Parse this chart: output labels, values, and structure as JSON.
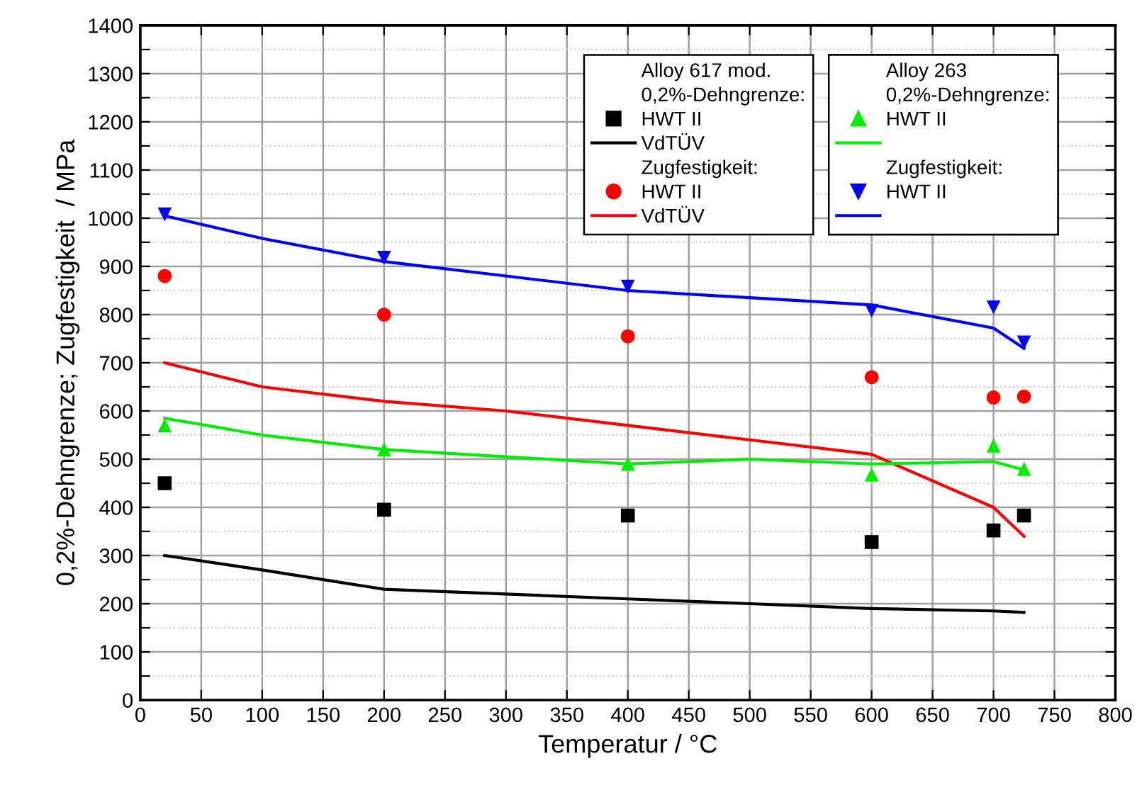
{
  "chart_data": {
    "type": "line",
    "xlabel": "Temperatur / °C",
    "ylabel": "0,2%-Dehngrenze; Zugfestigkeit  / MPa",
    "xlim": [
      0,
      800
    ],
    "ylim": [
      0,
      1400
    ],
    "xticks": [
      0,
      50,
      100,
      150,
      200,
      250,
      300,
      350,
      400,
      450,
      500,
      550,
      600,
      650,
      700,
      750,
      800
    ],
    "yticks": [
      0,
      {
        "value": 50,
        "label": null
      },
      100,
      {
        "value": 150,
        "label": null
      },
      200,
      {
        "value": 250,
        "label": null
      },
      300,
      {
        "value": 350,
        "label": null
      },
      400,
      {
        "value": 450,
        "label": null
      },
      500,
      {
        "value": 550,
        "label": null
      },
      600,
      {
        "value": 650,
        "label": null
      },
      700,
      {
        "value": 750,
        "label": null
      },
      800,
      {
        "value": 850,
        "label": null
      },
      900,
      {
        "value": 950,
        "label": null
      },
      1000,
      {
        "value": 1050,
        "label": null
      },
      1100,
      {
        "value": 1150,
        "label": null
      },
      1200,
      {
        "value": 1250,
        "label": null
      },
      1300,
      {
        "value": 1350,
        "label": null
      },
      1400
    ],
    "grid": true,
    "legend": "top right",
    "annotations": [
      "Alloy 617 mod.",
      "0,2%-Dehngrenze:",
      "Zugfestigkeit:",
      "Alloy 263",
      "0,2%-Dehngrenze:",
      "Zugfestigkeit:"
    ],
    "series": [
      {
        "name": "HWT II",
        "type": "scatter",
        "marker": "square",
        "color": "#000000",
        "x": [
          20,
          200,
          400,
          600,
          700,
          725
        ],
        "values": [
          450,
          395,
          383,
          328,
          352,
          383
        ]
      },
      {
        "name": "VdTÜV",
        "marker": "none",
        "color": "#000000",
        "x": [
          20,
          100,
          200,
          300,
          400,
          500,
          600,
          700,
          725
        ],
        "values": [
          300,
          270,
          230,
          220,
          210,
          200,
          190,
          185,
          182
        ]
      },
      {
        "name": "HWT II",
        "type": "scatter",
        "marker": "circle",
        "color": "#ff0000",
        "x": [
          20,
          200,
          400,
          600,
          700,
          725
        ],
        "values": [
          880,
          800,
          755,
          670,
          628,
          630
        ]
      },
      {
        "name": "VdTÜV",
        "marker": "none",
        "color": "#ff0000",
        "x": [
          20,
          100,
          200,
          300,
          400,
          500,
          600,
          700,
          725
        ],
        "values": [
          700,
          650,
          620,
          600,
          570,
          540,
          510,
          400,
          340
        ]
      },
      {
        "name": "HWT II",
        "type": "scatter",
        "marker": "triangle",
        "color": "#00ee00",
        "x": [
          20,
          200,
          400,
          600,
          700,
          725
        ],
        "values": [
          570,
          520,
          490,
          468,
          528,
          480
        ]
      },
      {
        "marker": "none",
        "color": "#00ee00",
        "x": [
          20,
          100,
          200,
          300,
          400,
          500,
          600,
          700,
          725
        ],
        "values": [
          585,
          550,
          520,
          505,
          490,
          500,
          490,
          495,
          478
        ]
      },
      {
        "name": "HWT II",
        "type": "scatter",
        "marker": "triangle_down",
        "color": "#0000ff",
        "x": [
          20,
          200,
          400,
          600,
          700,
          725
        ],
        "values": [
          1008,
          918,
          858,
          808,
          815,
          742
        ]
      },
      {
        "marker": "none",
        "color": "#0000ff",
        "x": [
          20,
          100,
          200,
          300,
          400,
          500,
          600,
          700,
          725
        ],
        "values": [
          1005,
          958,
          910,
          880,
          850,
          835,
          820,
          772,
          730
        ]
      }
    ]
  }
}
